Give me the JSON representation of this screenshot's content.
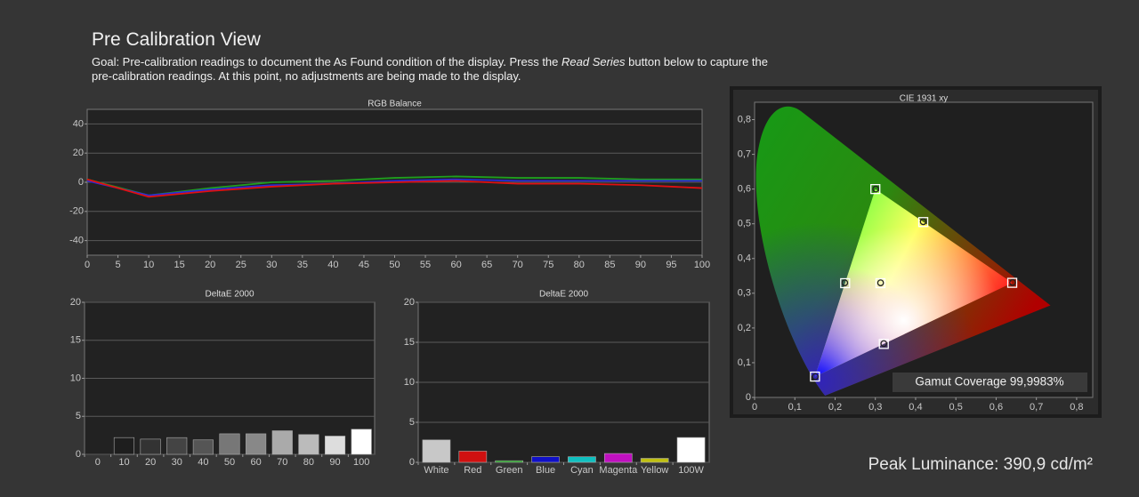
{
  "header": {
    "title": "Pre Calibration View",
    "goal": [
      "Goal: Pre-calibration readings to document the As Found condition of the display. Press the ",
      "Read Series",
      " button below to capture the pre-calibration readings. At this point, no adjustments are being made to the display."
    ]
  },
  "chart_data": [
    {
      "type": "line",
      "title": "RGB Balance",
      "x": [
        0,
        10,
        20,
        30,
        40,
        50,
        60,
        70,
        80,
        90,
        100
      ],
      "series": [
        {
          "color": "#1f9e1f",
          "values": [
            2,
            -9,
            -4,
            0,
            1,
            3,
            4,
            3,
            3,
            2,
            2
          ]
        },
        {
          "color": "#2a2ad8",
          "values": [
            1,
            -9,
            -5,
            -2,
            -1,
            1,
            2,
            1,
            1,
            1,
            1
          ]
        },
        {
          "color": "#e01010",
          "values": [
            2,
            -10,
            -6,
            -3,
            -1,
            0,
            1,
            -1,
            -1,
            -2,
            -4
          ]
        }
      ],
      "xlim": [
        0,
        100
      ],
      "xticks": [
        0,
        5,
        10,
        15,
        20,
        25,
        30,
        35,
        40,
        45,
        50,
        55,
        60,
        65,
        70,
        75,
        80,
        85,
        90,
        95,
        100
      ],
      "ylim": [
        -50,
        50
      ],
      "yticks": [
        -40,
        -20,
        0,
        20,
        40
      ],
      "grid": true
    },
    {
      "type": "bar",
      "title": "DeltaE 2000",
      "categories": [
        "0",
        "10",
        "20",
        "30",
        "40",
        "50",
        "60",
        "70",
        "80",
        "90",
        "100"
      ],
      "values": [
        0,
        2.2,
        2.0,
        2.2,
        1.9,
        2.7,
        2.7,
        3.1,
        2.6,
        2.4,
        3.3
      ],
      "colors": [
        "#000000",
        "#1e1e1e",
        "#333333",
        "#444444",
        "#555555",
        "#777777",
        "#888888",
        "#aaaaaa",
        "#bbbbbb",
        "#dddddd",
        "#ffffff"
      ],
      "ylim": [
        0,
        20
      ],
      "yticks": [
        0,
        5,
        10,
        15,
        20
      ],
      "grid": true
    },
    {
      "type": "bar",
      "title": "DeltaE 2000",
      "categories": [
        "White",
        "Red",
        "Green",
        "Blue",
        "Cyan",
        "Magenta",
        "Yellow",
        "100W"
      ],
      "values": [
        2.8,
        1.4,
        0.2,
        0.7,
        0.7,
        1.1,
        0.5,
        3.1
      ],
      "colors": [
        "#c8c8c8",
        "#d01010",
        "#10a010",
        "#1010c8",
        "#10c0c0",
        "#c010c0",
        "#c0c010",
        "#ffffff"
      ],
      "ylim": [
        0,
        20
      ],
      "yticks": [
        0,
        5,
        10,
        15,
        20
      ],
      "grid": true
    },
    {
      "type": "scatter",
      "title": "CIE 1931 xy",
      "series": [
        {
          "marker": "square",
          "color": "#ffffff",
          "x": [
            0.64,
            0.3,
            0.15,
            0.3127,
            0.225,
            0.321,
            0.419
          ],
          "values": [
            0.33,
            0.6,
            0.06,
            0.329,
            0.329,
            0.154,
            0.505
          ]
        },
        {
          "marker": "circle",
          "color": "#222222",
          "x": [
            0.641,
            0.301,
            0.151,
            0.313,
            0.224,
            0.321,
            0.419
          ],
          "values": [
            0.331,
            0.6,
            0.06,
            0.33,
            0.33,
            0.155,
            0.506
          ]
        }
      ],
      "xlim": [
        0,
        0.84
      ],
      "ylim": [
        0,
        0.85
      ],
      "xticks": [
        0,
        {
          "value": 0.1,
          "label": "0,1"
        },
        {
          "value": 0.2,
          "label": "0,2"
        },
        {
          "value": 0.3,
          "label": "0,3"
        },
        {
          "value": 0.4,
          "label": "0,4"
        },
        {
          "value": 0.5,
          "label": "0,5"
        },
        {
          "value": 0.6,
          "label": "0,6"
        },
        {
          "value": 0.7,
          "label": "0,7"
        },
        {
          "value": 0.8,
          "label": "0,8"
        }
      ],
      "yticks": [
        0,
        {
          "value": 0.1,
          "label": "0,1"
        },
        {
          "value": 0.2,
          "label": "0,2"
        },
        {
          "value": 0.3,
          "label": "0,3"
        },
        {
          "value": 0.4,
          "label": "0,4"
        },
        {
          "value": 0.5,
          "label": "0,5"
        },
        {
          "value": 0.6,
          "label": "0,6"
        },
        {
          "value": 0.7,
          "label": "0,7"
        },
        {
          "value": 0.8,
          "label": "0,8"
        }
      ],
      "grid": false,
      "annotation": "Gamut Coverage 99,9983%"
    }
  ],
  "footer": {
    "peak_luminance": "Peak Luminance: 390,9 cd/m²"
  }
}
